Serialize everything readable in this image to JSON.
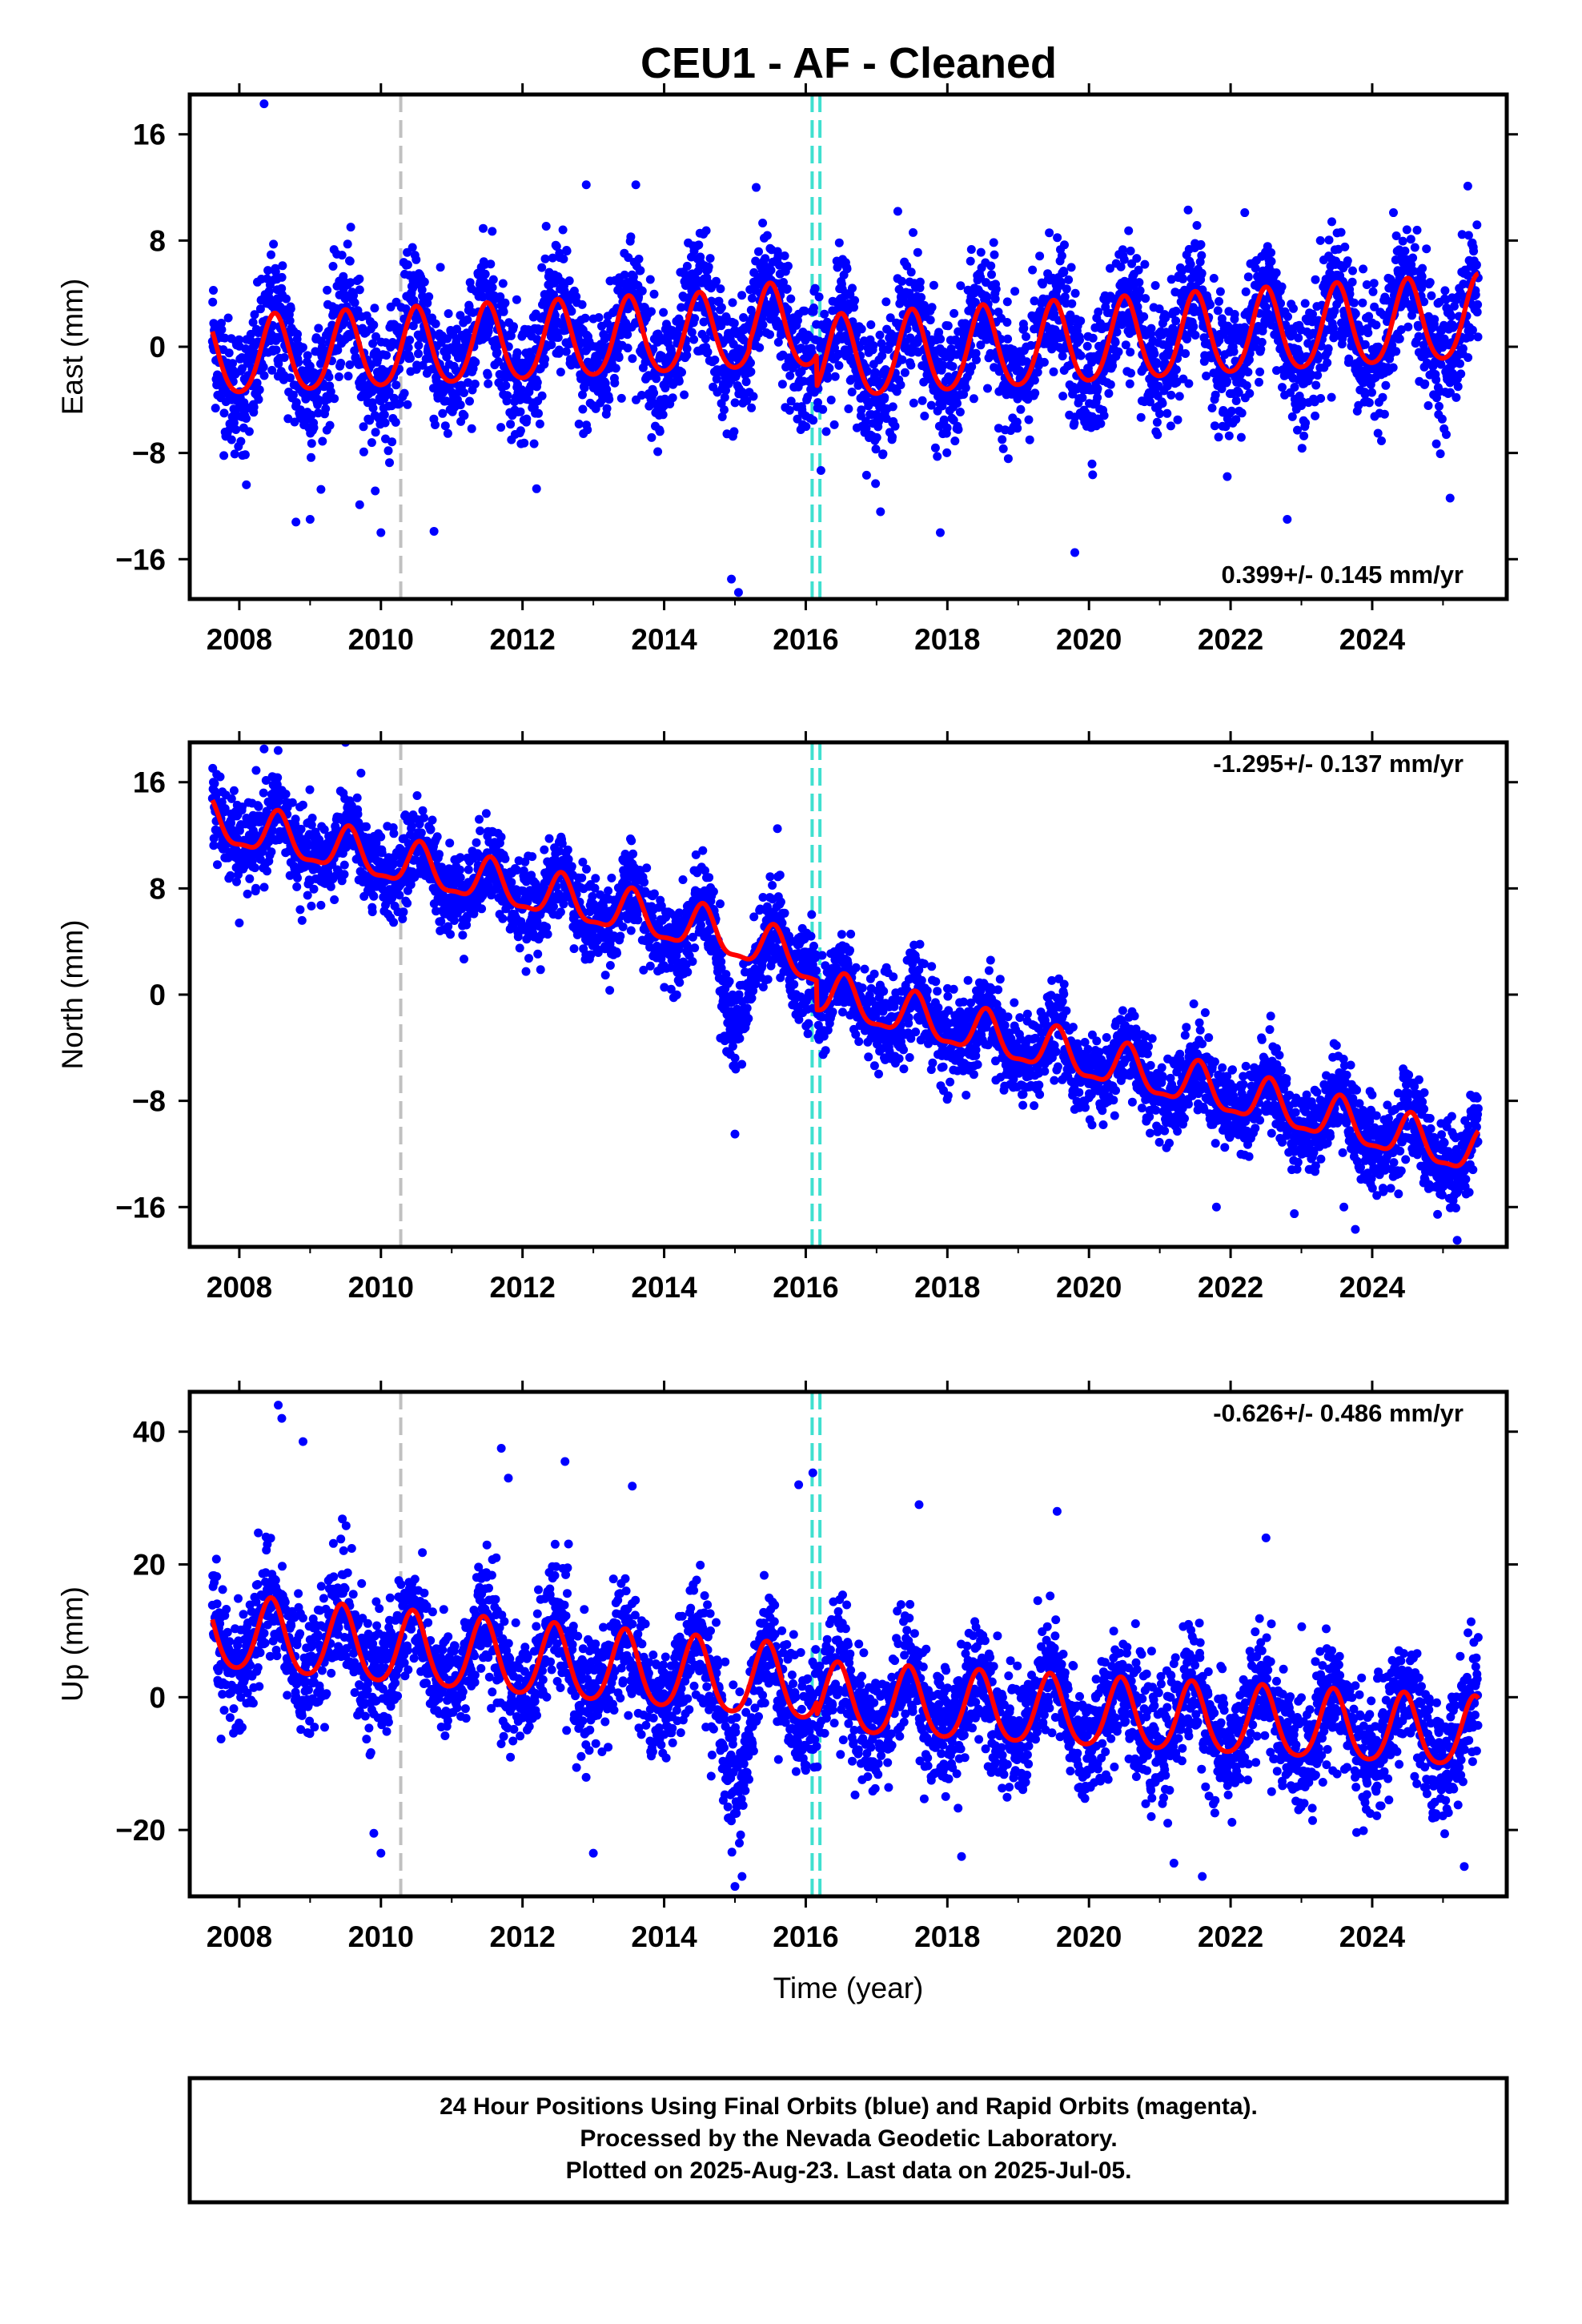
{
  "title": "CEU1  - AF - Cleaned",
  "colors": {
    "final_orbits": "#0000ff",
    "model_fit": "#ff0000",
    "equipment_change": "#c0c0c0",
    "other_event": "#40e0d0",
    "frame": "#000000"
  },
  "chart_data": [
    {
      "type": "scatter",
      "name": "east",
      "ylabel": "East (mm)",
      "xlabel": "",
      "xlim": [
        2007.3,
        2025.9
      ],
      "ylim": [
        -19,
        19
      ],
      "xticks": [
        2008,
        2010,
        2012,
        2014,
        2016,
        2018,
        2020,
        2022,
        2024
      ],
      "yticks": [
        16,
        8,
        0,
        -8,
        -16
      ],
      "ytick_labels": [
        "16",
        "8",
        "0",
        "−8",
        "−16"
      ],
      "rate": "0.399+/- 0.145 mm/yr",
      "rate_position": "bottom-right",
      "events": [
        {
          "x": 2010.28,
          "kind": "equipment_change"
        },
        {
          "x": 2016.09,
          "kind": "other_event"
        },
        {
          "x": 2016.2,
          "kind": "other_event"
        }
      ],
      "model": {
        "segments": [
          {
            "from": 2007.6,
            "to": 2015.2,
            "trend": [
              [
                2007.6,
                -1.0
              ],
              [
                2015.2,
                1.0
              ]
            ],
            "annual_amp": 2.9,
            "semi_amp": 0.4,
            "phase": 0.5
          },
          {
            "from": 2015.2,
            "to": 2016.15,
            "trend": [
              [
                2015.2,
                1.5
              ],
              [
                2016.15,
                1.2
              ]
            ],
            "annual_amp": 3.0,
            "semi_amp": 0.4,
            "phase": 0.5
          },
          {
            "from": 2016.15,
            "to": 2025.5,
            "trend": [
              [
                2016.15,
                -1.1
              ],
              [
                2025.5,
                2.0
              ]
            ],
            "annual_amp": 3.1,
            "semi_amp": 0.4,
            "phase": 0.5
          }
        ]
      },
      "scatter_sigma": 2.4,
      "outliers": [
        {
          "x": 2008.35,
          "y": 18.3
        },
        {
          "x": 2008.8,
          "y": -13.2
        },
        {
          "x": 2009.0,
          "y": -13.0
        },
        {
          "x": 2010.0,
          "y": -14.0
        },
        {
          "x": 2010.75,
          "y": -13.9
        },
        {
          "x": 2012.9,
          "y": 12.2
        },
        {
          "x": 2013.6,
          "y": 12.2
        },
        {
          "x": 2014.95,
          "y": -17.5
        },
        {
          "x": 2015.05,
          "y": -18.5
        },
        {
          "x": 2015.3,
          "y": 12.0
        },
        {
          "x": 2017.3,
          "y": 10.2
        },
        {
          "x": 2017.9,
          "y": -14.0
        },
        {
          "x": 2019.8,
          "y": -15.5
        },
        {
          "x": 2021.4,
          "y": 10.3
        },
        {
          "x": 2022.2,
          "y": 10.1
        },
        {
          "x": 2022.8,
          "y": -13.0
        },
        {
          "x": 2024.3,
          "y": 10.1
        },
        {
          "x": 2025.35,
          "y": 12.1
        },
        {
          "x": 2025.1,
          "y": -11.4
        },
        {
          "x": 2008.1,
          "y": -10.4
        },
        {
          "x": 2009.7,
          "y": -11.9
        }
      ]
    },
    {
      "type": "scatter",
      "name": "north",
      "ylabel": "North (mm)",
      "xlabel": "",
      "xlim": [
        2007.3,
        2025.9
      ],
      "ylim": [
        -19,
        19
      ],
      "xticks": [
        2008,
        2010,
        2012,
        2014,
        2016,
        2018,
        2020,
        2022,
        2024
      ],
      "yticks": [
        16,
        8,
        0,
        -8,
        -16
      ],
      "ytick_labels": [
        "16",
        "8",
        "0",
        "−8",
        "−16"
      ],
      "rate": "-1.295+/- 0.137 mm/yr",
      "rate_position": "top-right",
      "events": [
        {
          "x": 2010.28,
          "kind": "equipment_change"
        },
        {
          "x": 2016.09,
          "kind": "other_event"
        },
        {
          "x": 2016.2,
          "kind": "other_event"
        }
      ],
      "model": {
        "segments": [
          {
            "from": 2007.6,
            "to": 2016.15,
            "trend": [
              [
                2007.6,
                12.9
              ],
              [
                2014.7,
                4.6
              ],
              [
                2016.15,
                2.2
              ]
            ],
            "annual_amp": 1.6,
            "semi_amp": 0.5,
            "phase": 0.55
          },
          {
            "from": 2016.15,
            "to": 2025.5,
            "trend": [
              [
                2016.15,
                0.0
              ],
              [
                2025.5,
                -12.2
              ]
            ],
            "annual_amp": 1.6,
            "semi_amp": 0.5,
            "phase": 0.55
          }
        ]
      },
      "scatter_sigma": 1.6,
      "transient": {
        "from": 2014.7,
        "to": 2015.3,
        "depth": 5.5
      },
      "outliers": [
        {
          "x": 2008.35,
          "y": 18.5
        },
        {
          "x": 2009.5,
          "y": 19.0
        },
        {
          "x": 2008.0,
          "y": 5.4
        },
        {
          "x": 2015.0,
          "y": -10.5
        },
        {
          "x": 2015.6,
          "y": 12.5
        },
        {
          "x": 2021.8,
          "y": -16.0
        },
        {
          "x": 2022.9,
          "y": -16.5
        },
        {
          "x": 2025.2,
          "y": -18.5
        },
        {
          "x": 2023.6,
          "y": -16.0
        }
      ]
    },
    {
      "type": "scatter",
      "name": "up",
      "ylabel": "Up (mm)",
      "xlabel": "Time (year)",
      "xlim": [
        2007.3,
        2025.9
      ],
      "ylim": [
        -30,
        46
      ],
      "xticks": [
        2008,
        2010,
        2012,
        2014,
        2016,
        2018,
        2020,
        2022,
        2024
      ],
      "yticks": [
        40,
        20,
        0,
        -20
      ],
      "ytick_labels": [
        "40",
        "20",
        "0",
        "−20"
      ],
      "rate": "-0.626+/- 0.486 mm/yr",
      "rate_position": "top-right",
      "events": [
        {
          "x": 2010.28,
          "kind": "equipment_change"
        },
        {
          "x": 2016.09,
          "kind": "other_event"
        },
        {
          "x": 2016.2,
          "kind": "other_event"
        }
      ],
      "model": {
        "segments": [
          {
            "from": 2007.6,
            "to": 2016.15,
            "trend": [
              [
                2007.6,
                9.5
              ],
              [
                2016.15,
                1.5
              ]
            ],
            "annual_amp": 5.5,
            "semi_amp": 0.8,
            "phase": 0.45
          },
          {
            "from": 2016.15,
            "to": 2025.5,
            "trend": [
              [
                2016.15,
                -0.5
              ],
              [
                2025.5,
                -5.8
              ]
            ],
            "annual_amp": 5.2,
            "semi_amp": 0.8,
            "phase": 0.45
          }
        ]
      },
      "scatter_sigma": 4.5,
      "transient": {
        "from": 2014.75,
        "to": 2015.35,
        "depth": 10.0
      },
      "outliers": [
        {
          "x": 2008.55,
          "y": 44.0
        },
        {
          "x": 2008.6,
          "y": 42.0
        },
        {
          "x": 2008.9,
          "y": 38.5
        },
        {
          "x": 2011.7,
          "y": 37.5
        },
        {
          "x": 2011.8,
          "y": 33.0
        },
        {
          "x": 2012.6,
          "y": 35.5
        },
        {
          "x": 2013.55,
          "y": 31.8
        },
        {
          "x": 2016.1,
          "y": 33.8
        },
        {
          "x": 2015.9,
          "y": 32.0
        },
        {
          "x": 2017.6,
          "y": 29.0
        },
        {
          "x": 2019.55,
          "y": 28.0
        },
        {
          "x": 2022.5,
          "y": 24.0
        },
        {
          "x": 2010.0,
          "y": -23.5
        },
        {
          "x": 2009.9,
          "y": -20.5
        },
        {
          "x": 2013.0,
          "y": -23.5
        },
        {
          "x": 2015.0,
          "y": -28.5
        },
        {
          "x": 2015.1,
          "y": -27.0
        },
        {
          "x": 2021.6,
          "y": -27.0
        },
        {
          "x": 2021.2,
          "y": -25.0
        },
        {
          "x": 2025.3,
          "y": -25.5
        },
        {
          "x": 2018.2,
          "y": -24.0
        }
      ]
    }
  ],
  "footer": {
    "line1": "24 Hour Positions Using Final Orbits (blue) and Rapid Orbits (magenta).",
    "line2": "Processed by the Nevada Geodetic Laboratory.",
    "line3": "Plotted on 2025-Aug-23. Last data on 2025-Jul-05."
  }
}
